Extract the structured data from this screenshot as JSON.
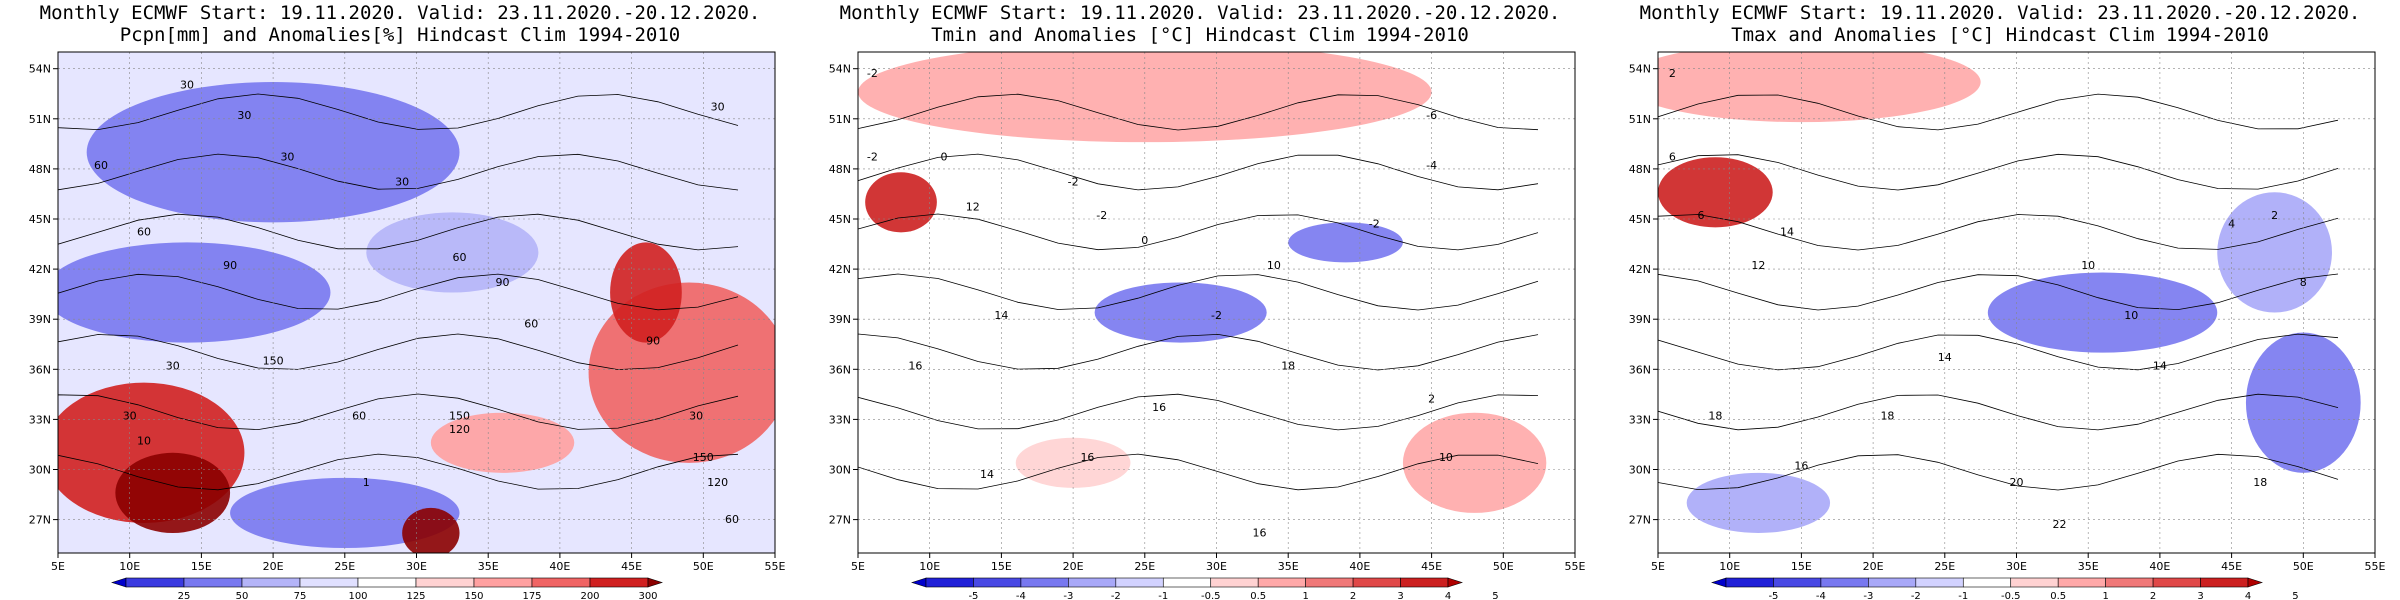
{
  "chart_data": [
    {
      "type": "heatmap",
      "title": "Monthly ECMWF Start: 19.11.2020. Valid: 23.11.2020.-20.12.2020.",
      "subtitle": "Pcpn[mm] and Anomalies[%] Hindcast Clim 1994-2010",
      "x_ticks": [
        "5E",
        "10E",
        "15E",
        "20E",
        "25E",
        "30E",
        "35E",
        "40E",
        "45E",
        "50E",
        "55E"
      ],
      "y_ticks": [
        "54N",
        "51N",
        "48N",
        "45N",
        "42N",
        "39N",
        "36N",
        "33N",
        "30N",
        "27N"
      ],
      "xlim": [
        5,
        55
      ],
      "ylim": [
        25,
        55
      ],
      "colorbar": {
        "labels": [
          "25",
          "50",
          "75",
          "100",
          "125",
          "150",
          "175",
          "200",
          "300"
        ],
        "colors": [
          "#0000cc",
          "#3a3ae0",
          "#7878f0",
          "#b4b4f8",
          "#e0e0ff",
          "#ffffff",
          "#ffd2d2",
          "#ffa0a0",
          "#f06464",
          "#d02020",
          "#8b0000"
        ]
      },
      "contour_labels": [
        {
          "lon": 14,
          "lat": 52.8,
          "text": "30"
        },
        {
          "lon": 18,
          "lat": 51,
          "text": "30"
        },
        {
          "lon": 21,
          "lat": 48.5,
          "text": "30"
        },
        {
          "lon": 29,
          "lat": 47,
          "text": "30"
        },
        {
          "lon": 51,
          "lat": 51.5,
          "text": "30"
        },
        {
          "lon": 8,
          "lat": 48,
          "text": "60"
        },
        {
          "lon": 11,
          "lat": 44,
          "text": "60"
        },
        {
          "lon": 17,
          "lat": 42,
          "text": "90"
        },
        {
          "lon": 33,
          "lat": 42.5,
          "text": "60"
        },
        {
          "lon": 36,
          "lat": 41,
          "text": "90"
        },
        {
          "lon": 38,
          "lat": 38.5,
          "text": "60"
        },
        {
          "lon": 20,
          "lat": 36.3,
          "text": "150"
        },
        {
          "lon": 13,
          "lat": 36,
          "text": "30"
        },
        {
          "lon": 10,
          "lat": 33,
          "text": "30"
        },
        {
          "lon": 11,
          "lat": 31.5,
          "text": "10"
        },
        {
          "lon": 26,
          "lat": 33,
          "text": "60"
        },
        {
          "lon": 33,
          "lat": 33,
          "text": "150"
        },
        {
          "lon": 33,
          "lat": 32.2,
          "text": "120"
        },
        {
          "lon": 46.5,
          "lat": 37.5,
          "text": "90"
        },
        {
          "lon": 49.5,
          "lat": 33,
          "text": "30"
        },
        {
          "lon": 50,
          "lat": 30.5,
          "text": "150"
        },
        {
          "lon": 51,
          "lat": 29,
          "text": "120"
        },
        {
          "lon": 52,
          "lat": 26.8,
          "text": "60"
        },
        {
          "lon": 26.5,
          "lat": 29,
          "text": "1"
        }
      ]
    },
    {
      "type": "heatmap",
      "title": "Monthly ECMWF Start: 19.11.2020. Valid: 23.11.2020.-20.12.2020.",
      "subtitle": "Tmin and Anomalies [°C] Hindcast Clim 1994-2010",
      "x_ticks": [
        "5E",
        "10E",
        "15E",
        "20E",
        "25E",
        "30E",
        "35E",
        "40E",
        "45E",
        "50E",
        "55E"
      ],
      "y_ticks": [
        "54N",
        "51N",
        "48N",
        "45N",
        "42N",
        "39N",
        "36N",
        "33N",
        "30N",
        "27N"
      ],
      "xlim": [
        5,
        55
      ],
      "ylim": [
        25,
        55
      ],
      "colorbar": {
        "labels": [
          "-5",
          "-4",
          "-3",
          "-2",
          "-1",
          "-0.5",
          "0.5",
          "1",
          "2",
          "3",
          "4",
          "5"
        ],
        "colors": [
          "#0000cc",
          "#2020d8",
          "#4848e4",
          "#7878f0",
          "#a8a8f8",
          "#d2d2ff",
          "#ffffff",
          "#ffd2d2",
          "#ffa8a8",
          "#f07878",
          "#e04848",
          "#cc2020",
          "#b00000"
        ]
      },
      "contour_labels": [
        {
          "lon": 6,
          "lat": 53.5,
          "text": "-2"
        },
        {
          "lon": 6,
          "lat": 48.5,
          "text": "-2"
        },
        {
          "lon": 11,
          "lat": 48.5,
          "text": "0"
        },
        {
          "lon": 20,
          "lat": 47,
          "text": "-2"
        },
        {
          "lon": 22,
          "lat": 45,
          "text": "-2"
        },
        {
          "lon": 45,
          "lat": 51,
          "text": "-6"
        },
        {
          "lon": 45,
          "lat": 48,
          "text": "-4"
        },
        {
          "lon": 13,
          "lat": 45.5,
          "text": "12"
        },
        {
          "lon": 25,
          "lat": 43.5,
          "text": "0"
        },
        {
          "lon": 34,
          "lat": 42,
          "text": "10"
        },
        {
          "lon": 41,
          "lat": 44.5,
          "text": "-2"
        },
        {
          "lon": 15,
          "lat": 39,
          "text": "14"
        },
        {
          "lon": 30,
          "lat": 39,
          "text": "-2"
        },
        {
          "lon": 9,
          "lat": 36,
          "text": "16"
        },
        {
          "lon": 26,
          "lat": 33.5,
          "text": "16"
        },
        {
          "lon": 35,
          "lat": 36,
          "text": "18"
        },
        {
          "lon": 45,
          "lat": 34,
          "text": "2"
        },
        {
          "lon": 46,
          "lat": 30.5,
          "text": "10"
        },
        {
          "lon": 14,
          "lat": 29.5,
          "text": "14"
        },
        {
          "lon": 21,
          "lat": 30.5,
          "text": "16"
        },
        {
          "lon": 33,
          "lat": 26,
          "text": "16"
        }
      ]
    },
    {
      "type": "heatmap",
      "title": "Monthly ECMWF Start: 19.11.2020. Valid: 23.11.2020.-20.12.2020.",
      "subtitle": "Tmax and Anomalies [°C] Hindcast Clim 1994-2010",
      "x_ticks": [
        "5E",
        "10E",
        "15E",
        "20E",
        "25E",
        "30E",
        "35E",
        "40E",
        "45E",
        "50E",
        "55E"
      ],
      "y_ticks": [
        "54N",
        "51N",
        "48N",
        "45N",
        "42N",
        "39N",
        "36N",
        "33N",
        "30N",
        "27N"
      ],
      "xlim": [
        5,
        55
      ],
      "ylim": [
        25,
        55
      ],
      "colorbar": {
        "labels": [
          "-5",
          "-4",
          "-3",
          "-2",
          "-1",
          "-0.5",
          "0.5",
          "1",
          "2",
          "3",
          "4",
          "5"
        ],
        "colors": [
          "#0000cc",
          "#2020d8",
          "#4848e4",
          "#7878f0",
          "#a8a8f8",
          "#d2d2ff",
          "#ffffff",
          "#ffd2d2",
          "#ffa8a8",
          "#f07878",
          "#e04848",
          "#cc2020",
          "#b00000"
        ]
      },
      "contour_labels": [
        {
          "lon": 6,
          "lat": 53.5,
          "text": "2"
        },
        {
          "lon": 6,
          "lat": 48.5,
          "text": "6"
        },
        {
          "lon": 8,
          "lat": 45,
          "text": "6"
        },
        {
          "lon": 14,
          "lat": 44,
          "text": "14"
        },
        {
          "lon": 12,
          "lat": 42,
          "text": "12"
        },
        {
          "lon": 35,
          "lat": 42,
          "text": "10"
        },
        {
          "lon": 45,
          "lat": 44.5,
          "text": "4"
        },
        {
          "lon": 48,
          "lat": 45,
          "text": "2"
        },
        {
          "lon": 50,
          "lat": 41,
          "text": "8"
        },
        {
          "lon": 38,
          "lat": 39,
          "text": "10"
        },
        {
          "lon": 25,
          "lat": 36.5,
          "text": "14"
        },
        {
          "lon": 40,
          "lat": 36,
          "text": "14"
        },
        {
          "lon": 15,
          "lat": 30,
          "text": "16"
        },
        {
          "lon": 9,
          "lat": 33,
          "text": "18"
        },
        {
          "lon": 21,
          "lat": 33,
          "text": "18"
        },
        {
          "lon": 30,
          "lat": 29,
          "text": "20"
        },
        {
          "lon": 47,
          "lat": 29,
          "text": "18"
        },
        {
          "lon": 33,
          "lat": 26.5,
          "text": "22"
        }
      ]
    }
  ]
}
